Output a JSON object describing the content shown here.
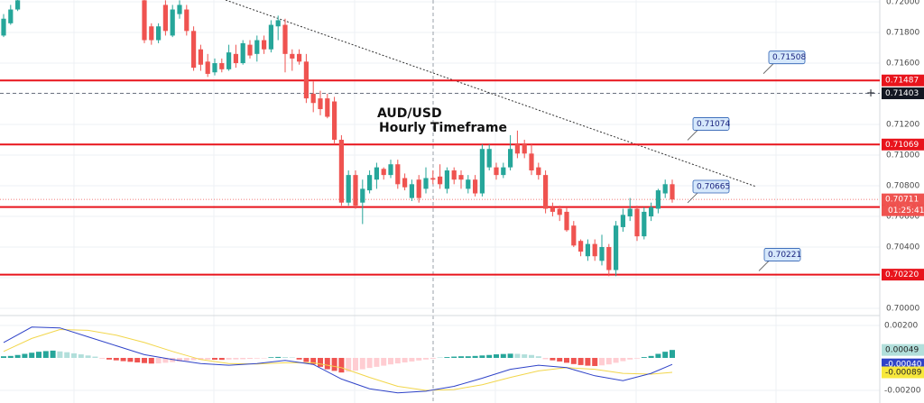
{
  "chart_data": {
    "type": "candlestick",
    "title": "AUD/USD",
    "subtitle": "Hourly Timeframe",
    "ylim": [
      0.69953,
      0.72012
    ],
    "yticks": [
      {
        "value": 0.72,
        "label": "0.72000"
      },
      {
        "value": 0.718,
        "label": "0.71800"
      },
      {
        "value": 0.716,
        "label": "0.71600"
      },
      {
        "value": 0.714,
        "label": "0.71400"
      },
      {
        "value": 0.712,
        "label": "0.71200"
      },
      {
        "value": 0.71,
        "label": "0.71000"
      },
      {
        "value": 0.708,
        "label": "0.70800"
      },
      {
        "value": 0.706,
        "label": "0.70600"
      },
      {
        "value": 0.704,
        "label": "0.70400"
      },
      {
        "value": 0.702,
        "label": "0.70200"
      },
      {
        "value": 0.7,
        "label": "0.70000"
      }
    ],
    "up_color": "#26a69a",
    "down_color": "#ef5350",
    "ohlc": [
      [
        0.7178,
        0.7192,
        0.7177,
        0.7189
      ],
      [
        0.7186,
        0.7198,
        0.7185,
        0.7195
      ],
      [
        0.7195,
        0.7204,
        0.7194,
        0.7201
      ],
      null,
      null,
      null,
      null,
      null,
      null,
      null,
      null,
      null,
      null,
      null,
      null,
      null,
      null,
      null,
      null,
      null,
      [
        0.7201,
        0.7204,
        0.7173,
        0.7175
      ],
      [
        0.7184,
        0.7186,
        0.7172,
        0.7175
      ],
      [
        0.7175,
        0.7186,
        0.7173,
        0.7184
      ],
      [
        0.7198,
        0.7201,
        0.7178,
        0.7181
      ],
      [
        0.7178,
        0.7198,
        0.7177,
        0.7195
      ],
      [
        0.7192,
        0.7201,
        0.7189,
        0.7198
      ],
      [
        0.7195,
        0.7198,
        0.7178,
        0.7181
      ],
      [
        0.7181,
        0.7184,
        0.7155,
        0.7157
      ],
      [
        0.7169,
        0.7172,
        0.7155,
        0.7159
      ],
      [
        0.7161,
        0.7166,
        0.7151,
        0.7153
      ],
      [
        0.7154,
        0.7163,
        0.7152,
        0.716
      ],
      [
        0.716,
        0.7163,
        0.7154,
        0.7156
      ],
      [
        0.7156,
        0.7172,
        0.7155,
        0.7167
      ],
      [
        0.7166,
        0.7172,
        0.7157,
        0.716
      ],
      [
        0.716,
        0.7175,
        0.7159,
        0.7173
      ],
      [
        0.7172,
        0.7175,
        0.7163,
        0.7165
      ],
      [
        0.7166,
        0.7178,
        0.7161,
        0.7175
      ],
      [
        0.7175,
        0.7178,
        0.7166,
        0.7169
      ],
      [
        0.7169,
        0.7188,
        0.7167,
        0.7185
      ],
      [
        0.7184,
        0.7191,
        0.7175,
        0.7188
      ],
      [
        0.7185,
        0.7189,
        0.7154,
        0.7166
      ],
      [
        0.7166,
        0.7169,
        0.7155,
        0.7163
      ],
      [
        0.7166,
        0.7169,
        0.7159,
        0.7161
      ],
      [
        0.7161,
        0.7166,
        0.7134,
        0.7137
      ],
      [
        0.714,
        0.7148,
        0.7128,
        0.7134
      ],
      [
        0.7137,
        0.7142,
        0.7126,
        0.713
      ],
      [
        0.7137,
        0.714,
        0.7124,
        0.7125
      ],
      [
        0.7135,
        0.7138,
        0.7107,
        0.711
      ],
      [
        0.711,
        0.7113,
        0.7067,
        0.7069
      ],
      [
        0.7069,
        0.709,
        0.7067,
        0.7087
      ],
      [
        0.7087,
        0.709,
        0.7065,
        0.7067
      ],
      [
        0.7069,
        0.7084,
        0.7055,
        0.7078
      ],
      [
        0.7077,
        0.709,
        0.7075,
        0.7087
      ],
      [
        0.7084,
        0.7095,
        0.7078,
        0.7092
      ],
      [
        0.7091,
        0.7092,
        0.7084,
        0.7087
      ],
      [
        0.7087,
        0.7097,
        0.7085,
        0.7094
      ],
      [
        0.7094,
        0.7097,
        0.7078,
        0.7081
      ],
      [
        0.7085,
        0.7088,
        0.7077,
        0.7079
      ],
      [
        0.7072,
        0.7084,
        0.707,
        0.7081
      ],
      [
        0.7084,
        0.7087,
        0.7069,
        0.7072
      ],
      [
        0.7078,
        0.7092,
        0.7075,
        0.7085
      ],
      [
        0.7085,
        0.709,
        0.7081,
        0.7084
      ],
      [
        0.7086,
        0.7094,
        0.7078,
        0.7081
      ],
      [
        0.7078,
        0.7092,
        0.7075,
        0.709
      ],
      [
        0.709,
        0.7092,
        0.7081,
        0.7084
      ],
      [
        0.7087,
        0.709,
        0.7078,
        0.7084
      ],
      [
        0.7078,
        0.7087,
        0.7075,
        0.7084
      ],
      [
        0.7084,
        0.7087,
        0.7073,
        0.7075
      ],
      [
        0.7075,
        0.7107,
        0.7073,
        0.7104
      ],
      [
        0.7092,
        0.7107,
        0.709,
        0.7104
      ],
      [
        0.7092,
        0.7095,
        0.7084,
        0.7087
      ],
      [
        0.7087,
        0.7095,
        0.7085,
        0.7092
      ],
      [
        0.7092,
        0.7113,
        0.709,
        0.7104
      ],
      [
        0.7107,
        0.7116,
        0.7098,
        0.7101
      ],
      [
        0.7107,
        0.711,
        0.7098,
        0.7101
      ],
      [
        0.7101,
        0.7107,
        0.7087,
        0.709
      ],
      [
        0.7092,
        0.7095,
        0.7084,
        0.7087
      ],
      [
        0.7087,
        0.709,
        0.7062,
        0.7065
      ],
      [
        0.7066,
        0.7069,
        0.706,
        0.7063
      ],
      [
        0.7065,
        0.7067,
        0.7057,
        0.7061
      ],
      [
        0.7063,
        0.7066,
        0.705,
        0.7051
      ],
      [
        0.7054,
        0.7057,
        0.704,
        0.7041
      ],
      [
        0.7044,
        0.7045,
        0.7034,
        0.7037
      ],
      [
        0.7034,
        0.7045,
        0.7031,
        0.7042
      ],
      [
        0.7042,
        0.7045,
        0.7031,
        0.7034
      ],
      [
        0.7031,
        0.7048,
        0.7028,
        0.704
      ],
      [
        0.704,
        0.7042,
        0.7021,
        0.7025
      ],
      [
        0.7025,
        0.7057,
        0.7021,
        0.7054
      ],
      [
        0.7053,
        0.7065,
        0.705,
        0.7061
      ],
      [
        0.706,
        0.7072,
        0.7057,
        0.7065
      ],
      [
        0.7065,
        0.7067,
        0.7044,
        0.7047
      ],
      [
        0.7047,
        0.7066,
        0.7045,
        0.7063
      ],
      [
        0.706,
        0.7069,
        0.7057,
        0.7066
      ],
      [
        0.7065,
        0.7078,
        0.7062,
        0.7077
      ],
      [
        0.7075,
        0.7084,
        0.7072,
        0.7081
      ],
      [
        0.7081,
        0.7084,
        0.7069,
        0.7071
      ]
    ],
    "levels": [
      0.71487,
      0.71069,
      0.70661,
      {
        "value": 0.7022,
        "label": "0.70220"
      }
    ],
    "level_color": "#e8141c",
    "callouts": [
      0.71508,
      0.71074,
      0.70665,
      0.70221
    ],
    "crosshair_price": 0.71403,
    "last_price": 0.70711,
    "countdown": "01:25:41",
    "macd": {
      "ylim": [
        -0.00278,
        0.0025
      ],
      "yticks": [
        {
          "value": 0.002,
          "label": "0.00200"
        },
        {
          "value": -0.002,
          "label": "-0.00200"
        }
      ],
      "histogram": [
        0.0001,
        0.00012,
        0.00018,
        0.00025,
        0.00032,
        0.00038,
        0.00042,
        0.00045,
        0.0004,
        0.00035,
        0.00028,
        0.00022,
        0.00015,
        8e-05,
        -5e-05,
        -0.0001,
        -0.00015,
        -0.0002,
        -0.00024,
        -0.00028,
        -0.00032,
        -0.00035,
        -0.00034,
        -0.0003,
        -0.00026,
        -0.00022,
        -0.00018,
        -0.00014,
        -0.00012,
        -0.0001,
        -0.00011,
        -0.00012,
        -0.0001,
        -9e-05,
        -8e-05,
        -6e-05,
        -4e-05,
        -3e-05,
        4e-05,
        6e-05,
        5e-05,
        3e-05,
        -0.0001,
        -0.00025,
        -0.0004,
        -0.00055,
        -0.0007,
        -0.0008,
        -0.0009,
        -0.00085,
        -0.00078,
        -0.0007,
        -0.00062,
        -0.00055,
        -0.00048,
        -0.0004,
        -0.00034,
        -0.00028,
        -0.00022,
        -0.00016,
        -0.0001,
        -5e-05,
        3e-05,
        5e-05,
        8e-05,
        0.0001,
        0.0001,
        0.00012,
        0.00015,
        0.00018,
        0.00022,
        0.00024,
        0.00026,
        0.00025,
        0.00022,
        0.00018,
        0.0001,
        -8e-05,
        -0.00015,
        -0.00022,
        -0.0003,
        -0.00038,
        -0.00044,
        -0.00048,
        -0.0005,
        -0.00046,
        -0.0004,
        -0.0003,
        -0.0002,
        -0.0001,
        -4e-05,
        5e-05,
        0.00012,
        0.00025,
        0.00038,
        0.00049
      ],
      "line_slots": [
        0,
        4,
        8,
        12,
        16,
        20,
        24,
        28,
        32,
        36,
        40,
        44,
        48,
        52,
        56,
        60,
        64,
        68,
        72,
        76,
        80,
        84,
        88,
        92,
        95
      ],
      "macd_line": [
        0.00095,
        0.0019,
        0.00185,
        0.0013,
        0.00075,
        0.0002,
        -0.0001,
        -0.00035,
        -0.00045,
        -0.00035,
        -0.00015,
        -0.0004,
        -0.0013,
        -0.0019,
        -0.00215,
        -0.00205,
        -0.00175,
        -0.00125,
        -0.0007,
        -0.00045,
        -0.0006,
        -0.0011,
        -0.0014,
        -0.00095,
        -0.0004
      ],
      "signal_line": [
        0.0004,
        0.0012,
        0.00175,
        0.0017,
        0.0014,
        0.00095,
        0.0004,
        -0.0001,
        -0.00035,
        -0.00038,
        -0.0003,
        -0.0003,
        -0.0006,
        -0.0012,
        -0.00175,
        -0.002,
        -0.00195,
        -0.00165,
        -0.0012,
        -0.0008,
        -0.0006,
        -0.0007,
        -0.00095,
        -0.001,
        -0.00089
      ],
      "macd_color": "#2f43c8",
      "signal_color": "#f2d64b",
      "histogram_badge": 0.00049,
      "macd_badge": {
        "value": -0.0004,
        "label": "-0.00040"
      },
      "signal_badge": -0.00089
    }
  }
}
